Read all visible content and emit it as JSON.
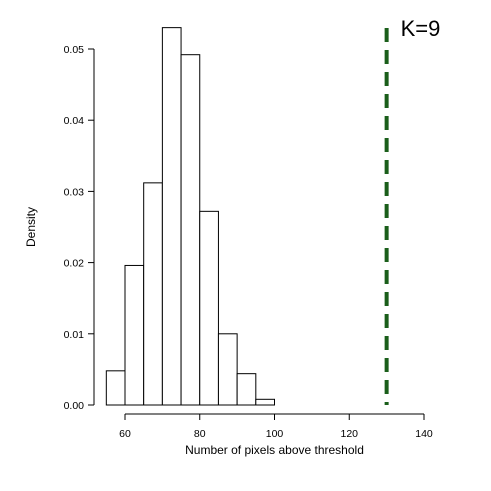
{
  "chart_data": {
    "type": "bar",
    "subtype": "histogram",
    "title": "",
    "xlabel": "Number of pixels above threshold",
    "ylabel": "Density",
    "xlim": [
      55,
      140
    ],
    "ylim": [
      0,
      0.053
    ],
    "xticks": [
      60,
      80,
      100,
      120,
      140
    ],
    "xtick_labels": [
      "60",
      "80",
      "100",
      "120",
      "140"
    ],
    "yticks": [
      0,
      0.01,
      0.02,
      0.03,
      0.04,
      0.05
    ],
    "ytick_labels": [
      "0.00",
      "0.01",
      "0.02",
      "0.03",
      "0.04",
      "0.05"
    ],
    "bin_width": 5,
    "bins": [
      {
        "start": 55,
        "end": 60,
        "density": 0.0048
      },
      {
        "start": 60,
        "end": 65,
        "density": 0.0196
      },
      {
        "start": 65,
        "end": 70,
        "density": 0.0312
      },
      {
        "start": 70,
        "end": 75,
        "density": 0.053
      },
      {
        "start": 75,
        "end": 80,
        "density": 0.0492
      },
      {
        "start": 80,
        "end": 85,
        "density": 0.0272
      },
      {
        "start": 85,
        "end": 90,
        "density": 0.01
      },
      {
        "start": 90,
        "end": 95,
        "density": 0.0044
      },
      {
        "start": 95,
        "end": 100,
        "density": 0.0008
      }
    ],
    "reference_line": {
      "x": 130,
      "style": "dashed",
      "color": "#1a5e1a",
      "label": "K=9"
    },
    "bar_fill": "#ffffff",
    "bar_stroke": "#000000",
    "grid": false,
    "legend": "none"
  }
}
